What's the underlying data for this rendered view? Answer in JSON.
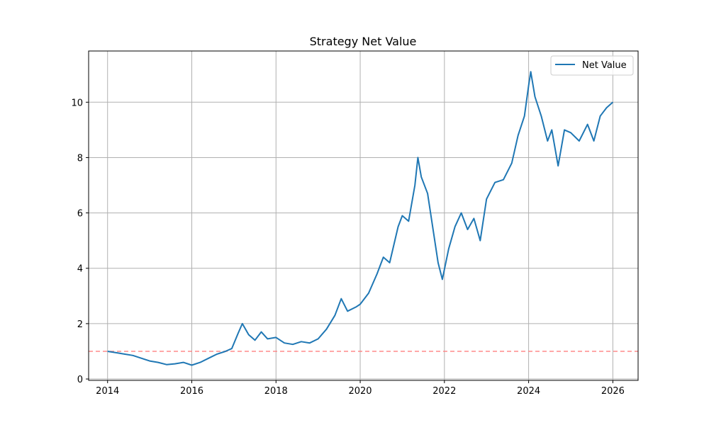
{
  "chart_data": {
    "type": "line",
    "title": "Strategy Net Value",
    "xlabel": "",
    "ylabel": "",
    "xlim": [
      2013.55,
      2026.6
    ],
    "ylim": [
      -0.05,
      11.85
    ],
    "x_ticks": [
      2014,
      2016,
      2018,
      2020,
      2022,
      2024,
      2026
    ],
    "x_tick_labels": [
      "2014",
      "2016",
      "2018",
      "2020",
      "2022",
      "2024",
      "2026"
    ],
    "y_ticks": [
      0,
      2,
      4,
      6,
      8,
      10
    ],
    "y_tick_labels": [
      "0",
      "2",
      "4",
      "6",
      "8",
      "10"
    ],
    "grid": true,
    "legend": {
      "placement": "top-right",
      "entries": [
        "Net Value"
      ]
    },
    "reference_line": {
      "y": 1.0,
      "color": "#ff7f7f",
      "style": "dashed"
    },
    "series": [
      {
        "name": "Net Value",
        "color": "#1f77b4",
        "x": [
          2014.0,
          2014.2,
          2014.4,
          2014.6,
          2014.8,
          2015.0,
          2015.2,
          2015.4,
          2015.6,
          2015.8,
          2016.0,
          2016.2,
          2016.4,
          2016.6,
          2016.8,
          2016.95,
          2017.1,
          2017.2,
          2017.35,
          2017.5,
          2017.65,
          2017.8,
          2018.0,
          2018.2,
          2018.4,
          2018.6,
          2018.8,
          2019.0,
          2019.2,
          2019.4,
          2019.55,
          2019.7,
          2019.9,
          2020.0,
          2020.2,
          2020.4,
          2020.55,
          2020.7,
          2020.9,
          2021.0,
          2021.15,
          2021.3,
          2021.37,
          2021.45,
          2021.6,
          2021.75,
          2021.85,
          2021.95,
          2022.1,
          2022.25,
          2022.4,
          2022.55,
          2022.7,
          2022.85,
          2023.0,
          2023.2,
          2023.4,
          2023.6,
          2023.75,
          2023.9,
          2024.0,
          2024.05,
          2024.15,
          2024.3,
          2024.45,
          2024.55,
          2024.7,
          2024.85,
          2025.0,
          2025.2,
          2025.4,
          2025.55,
          2025.7,
          2025.85,
          2026.0
        ],
        "values": [
          1.0,
          0.95,
          0.9,
          0.85,
          0.75,
          0.65,
          0.6,
          0.52,
          0.55,
          0.6,
          0.5,
          0.6,
          0.75,
          0.9,
          1.0,
          1.1,
          1.65,
          2.0,
          1.6,
          1.4,
          1.7,
          1.45,
          1.5,
          1.3,
          1.25,
          1.35,
          1.3,
          1.45,
          1.8,
          2.3,
          2.9,
          2.45,
          2.6,
          2.7,
          3.1,
          3.8,
          4.4,
          4.2,
          5.5,
          5.9,
          5.7,
          7.0,
          8.0,
          7.3,
          6.7,
          5.2,
          4.2,
          3.6,
          4.7,
          5.5,
          6.0,
          5.4,
          5.8,
          5.0,
          6.5,
          7.1,
          7.2,
          7.8,
          8.8,
          9.5,
          10.6,
          11.1,
          10.2,
          9.5,
          8.6,
          9.0,
          7.7,
          9.0,
          8.9,
          8.6,
          9.2,
          8.6,
          9.5,
          9.8,
          10.0
        ]
      }
    ]
  }
}
